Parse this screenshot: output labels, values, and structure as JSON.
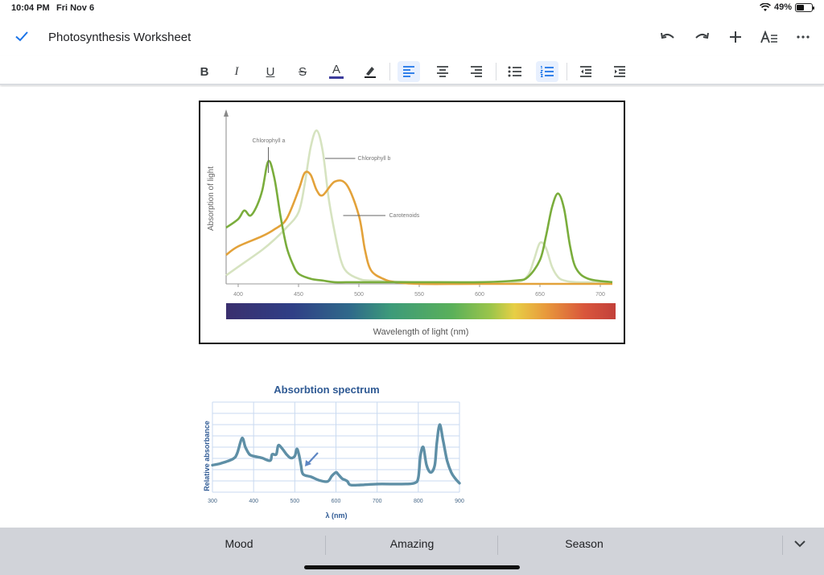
{
  "status": {
    "time": "10:04 PM",
    "date": "Fri Nov 6",
    "battery": "49%",
    "battery_level": 0.49
  },
  "header": {
    "title": "Photosynthesis Worksheet"
  },
  "toolbar": {
    "bold": "B",
    "italic": "I",
    "underline": "U",
    "strike": "S",
    "text_color": "A",
    "text_color_value": "#3c3c9c",
    "accent": "#1a73e8"
  },
  "figure1": {
    "ylabel": "Absorption of light",
    "xlabel": "Wavelength of light (nm)",
    "labels": {
      "chl_a": "Chlorophyll a",
      "chl_b": "Chlorophyll b",
      "carot": "Carotenoids"
    },
    "ticks": [
      "400",
      "450",
      "500",
      "550",
      "600",
      "650",
      "700"
    ]
  },
  "figure2": {
    "title": "Absorbtion spectrum",
    "ylabel": "Relative absorbance",
    "xlabel": "λ (nm)",
    "ticks": [
      "300",
      "400",
      "500",
      "600",
      "700",
      "800",
      "900"
    ]
  },
  "chart_data": [
    {
      "type": "line",
      "title": "",
      "xlabel": "Wavelength of light (nm)",
      "ylabel": "Absorption of light",
      "xlim": [
        390,
        710
      ],
      "ylim": [
        0,
        100
      ],
      "grid": false,
      "series": [
        {
          "name": "Chlorophyll a",
          "color": "#7aad3c",
          "x": [
            390,
            400,
            405,
            410,
            415,
            420,
            425,
            430,
            435,
            440,
            445,
            450,
            460,
            470,
            480,
            500,
            550,
            600,
            630,
            640,
            650,
            655,
            660,
            665,
            670,
            675,
            680,
            690,
            710
          ],
          "y": [
            33,
            38,
            43,
            40,
            45,
            55,
            72,
            62,
            40,
            22,
            12,
            6,
            3,
            2,
            1,
            1,
            1,
            1,
            2,
            4,
            14,
            28,
            45,
            53,
            44,
            22,
            9,
            3,
            1
          ]
        },
        {
          "name": "Chlorophyll b",
          "color": "#d6e3c0",
          "x": [
            390,
            400,
            420,
            430,
            440,
            450,
            455,
            460,
            465,
            470,
            475,
            480,
            485,
            490,
            500,
            510,
            550,
            600,
            630,
            640,
            645,
            650,
            655,
            660,
            665,
            670,
            680,
            710
          ],
          "y": [
            5,
            10,
            20,
            26,
            33,
            42,
            58,
            80,
            90,
            78,
            50,
            30,
            14,
            7,
            3,
            2,
            1,
            1,
            1,
            5,
            14,
            24,
            21,
            10,
            4,
            2,
            1,
            1
          ]
        },
        {
          "name": "Carotenoids",
          "color": "#e3a23a",
          "x": [
            390,
            400,
            420,
            430,
            440,
            450,
            455,
            460,
            465,
            470,
            480,
            490,
            500,
            505,
            510,
            520,
            530,
            550,
            600,
            710
          ],
          "y": [
            17,
            22,
            28,
            32,
            38,
            55,
            65,
            64,
            55,
            52,
            60,
            58,
            40,
            20,
            8,
            3,
            1,
            0,
            0,
            0
          ]
        }
      ]
    },
    {
      "type": "line",
      "title": "Absorbtion spectrum",
      "xlabel": "λ (nm)",
      "ylabel": "Relative absorbance",
      "xlim": [
        300,
        900
      ],
      "ylim": [
        0,
        100
      ],
      "grid": true,
      "series": [
        {
          "name": "",
          "color": "#5e8fa6",
          "x": [
            300,
            320,
            350,
            360,
            372,
            380,
            390,
            400,
            420,
            440,
            445,
            455,
            460,
            470,
            480,
            490,
            500,
            505,
            510,
            515,
            520,
            540,
            560,
            580,
            590,
            600,
            605,
            615,
            620,
            628,
            635,
            660,
            700,
            760,
            790,
            800,
            805,
            812,
            820,
            830,
            840,
            845,
            852,
            860,
            870,
            880,
            890,
            900
          ],
          "y": [
            30,
            32,
            37,
            43,
            60,
            50,
            42,
            40,
            38,
            35,
            42,
            42,
            52,
            48,
            42,
            38,
            40,
            48,
            42,
            30,
            20,
            17,
            13,
            12,
            18,
            22,
            20,
            15,
            14,
            12,
            8,
            8,
            9,
            9,
            10,
            16,
            40,
            50,
            30,
            22,
            30,
            55,
            75,
            58,
            35,
            22,
            15,
            10
          ]
        }
      ]
    }
  ],
  "suggestions": [
    "Mood",
    "Amazing",
    "Season"
  ]
}
